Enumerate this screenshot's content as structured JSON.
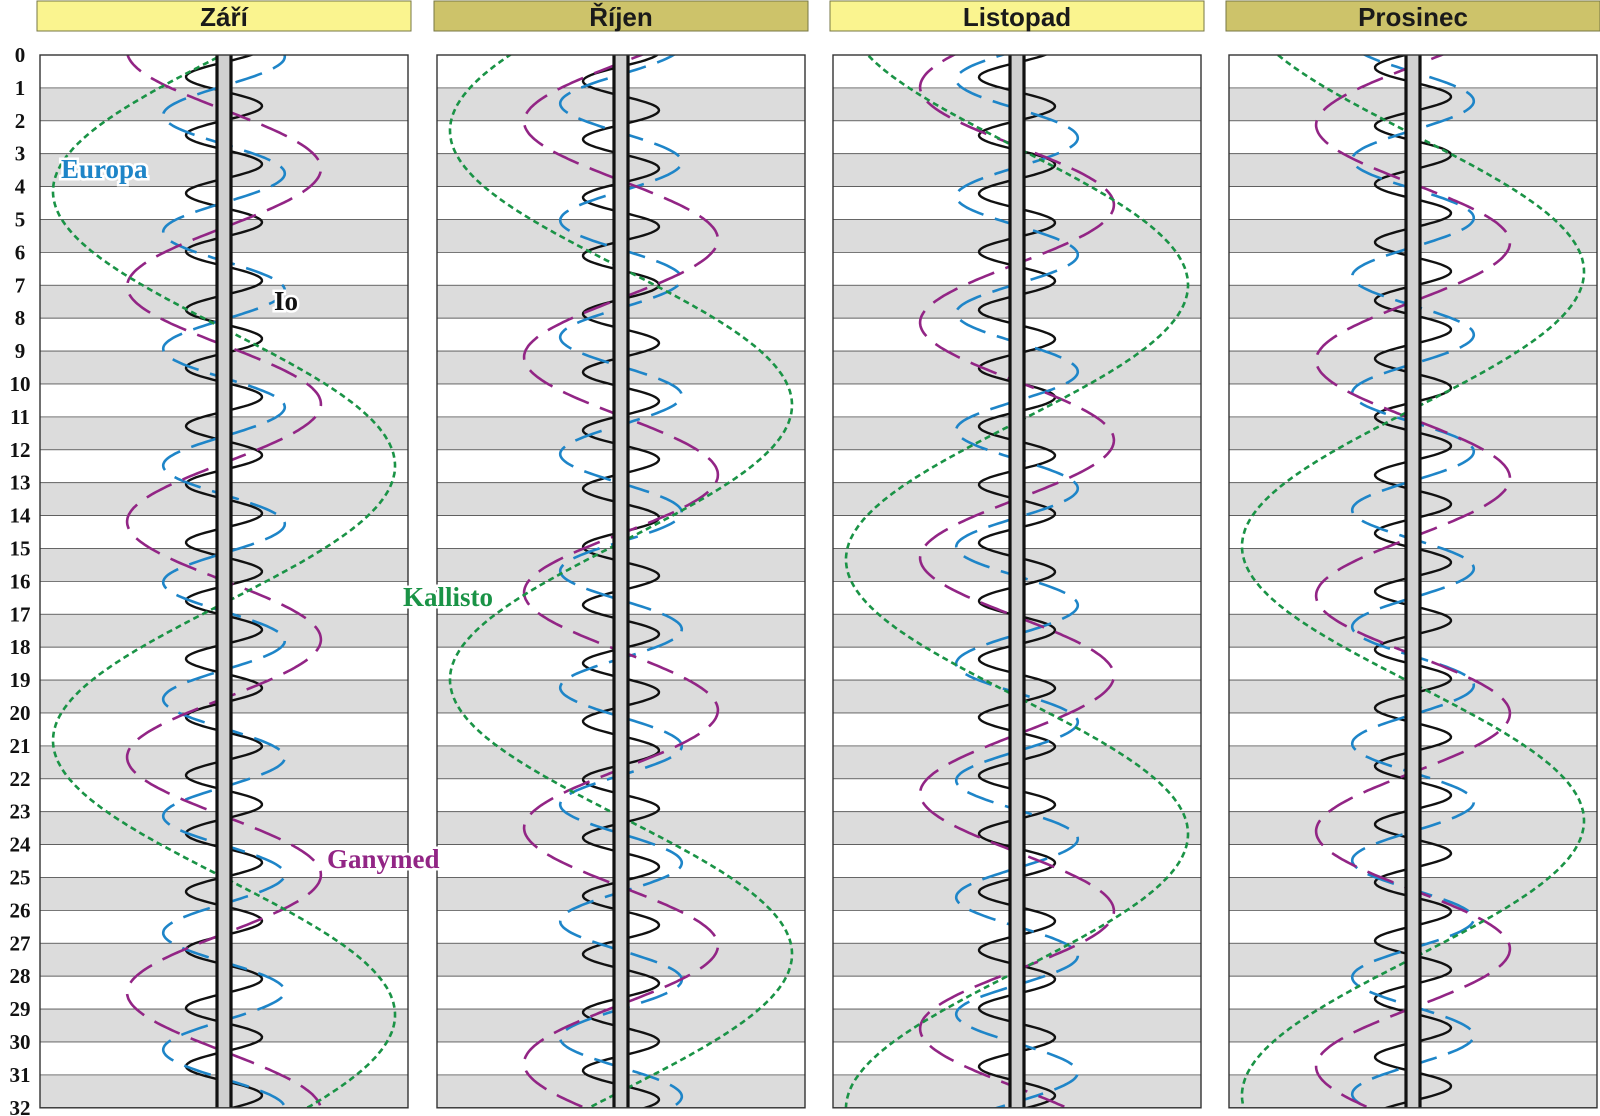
{
  "chart_data": {
    "type": "line",
    "title": "",
    "months": [
      "Září",
      "Říjen",
      "Listopad",
      "Prosinec"
    ],
    "month_header_colors": [
      "#faf48f",
      "#cdc36a",
      "#faf48f",
      "#cdc36a"
    ],
    "day_ticks": [
      "0",
      "1",
      "2",
      "3",
      "4",
      "5",
      "6",
      "7",
      "8",
      "9",
      "10",
      "11",
      "12",
      "13",
      "14",
      "15",
      "16",
      "17",
      "18",
      "19",
      "20",
      "21",
      "22",
      "23",
      "24",
      "25",
      "26",
      "27",
      "28",
      "29",
      "30",
      "31",
      "32"
    ],
    "ylim": [
      0,
      32
    ],
    "grid": "alternating day stripes",
    "series": [
      {
        "name": "Io",
        "color": "#111111",
        "line_style": "solid",
        "period_days": 1.769,
        "amplitude": 1,
        "phase_days": [
          -0.22,
          -0.09,
          -0.21,
          -0.5
        ]
      },
      {
        "name": "Europa",
        "color": "#1e85c8",
        "line_style": "dashed",
        "period_days": 3.551,
        "amplitude": 1.6,
        "phase_days": [
          0.05,
          -0.3,
          -1.03,
          -2.15
        ]
      },
      {
        "name": "Ganymed",
        "color": "#922585",
        "line_style": "dashed",
        "period_days": 7.155,
        "amplitude": 2.55,
        "phase_days": [
          -3.7,
          -1.55,
          -2.6,
          -1.45
        ]
      },
      {
        "name": "Kallisto",
        "color": "#1a9346",
        "line_style": "dotted",
        "period_days": 16.689,
        "amplitude": 4.5,
        "phase_days": [
          -4.2,
          -6.05,
          -9.7,
          -10.1
        ]
      }
    ],
    "labels": [
      {
        "text": "Europa",
        "color": "#1e85c8"
      },
      {
        "text": "Io",
        "color": "#111111"
      },
      {
        "text": "Kallisto",
        "color": "#1a9346"
      },
      {
        "text": "Ganymed",
        "color": "#922585"
      }
    ]
  }
}
